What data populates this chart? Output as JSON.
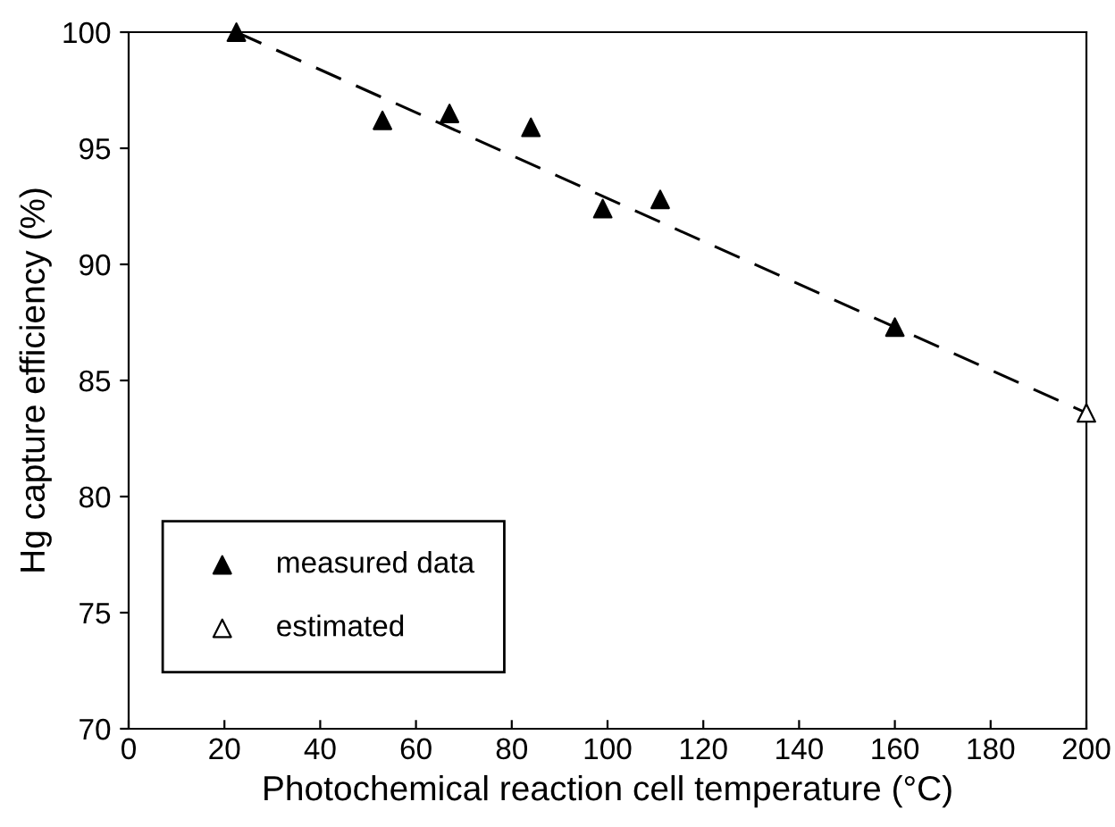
{
  "chart_data": {
    "type": "scatter",
    "xlabel": "Photochemical reaction cell temperature (°C)",
    "ylabel": "Hg capture efficiency (%)",
    "xlim": [
      0,
      200
    ],
    "ylim": [
      70,
      100
    ],
    "xticks": [
      0,
      20,
      40,
      60,
      80,
      100,
      120,
      140,
      160,
      180,
      200
    ],
    "yticks": [
      70,
      75,
      80,
      85,
      90,
      95,
      100
    ],
    "grid": false,
    "legend": "bottom left",
    "series": [
      {
        "name": "measured data",
        "marker": "triangle",
        "color": "#000000",
        "x": [
          22.5,
          53,
          67,
          84,
          99,
          111,
          160
        ],
        "values": [
          100,
          96.2,
          96.5,
          95.9,
          92.4,
          92.8,
          87.3
        ]
      },
      {
        "name": "estimated",
        "marker": "triangle",
        "color": "#ffffff",
        "x": [
          200
        ],
        "values": [
          83.6
        ]
      },
      {
        "type": "line",
        "color": "#000000",
        "line_style": "dashed",
        "x": [
          22.5,
          200
        ],
        "values": [
          100,
          83.6
        ]
      }
    ]
  }
}
